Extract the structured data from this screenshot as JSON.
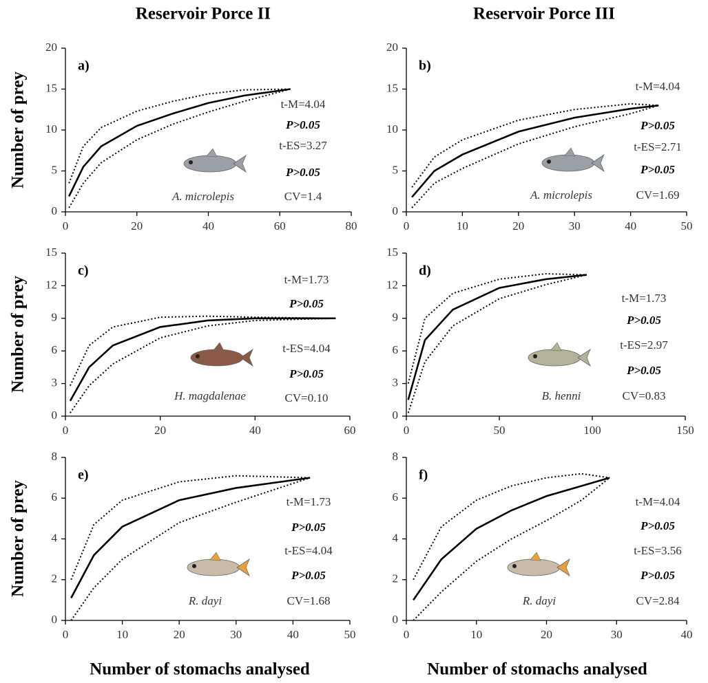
{
  "column_titles": [
    "Reservoir Porce II",
    "Reservoir Porce III"
  ],
  "y_label": "Number of prey",
  "x_label": "Number of stomachs analysed",
  "chart_data": [
    {
      "type": "line",
      "panel": "a)",
      "xlim": [
        0,
        80
      ],
      "xticks": [
        0,
        20,
        40,
        60,
        80
      ],
      "ylim": [
        0,
        20
      ],
      "yticks": [
        0,
        5,
        10,
        15,
        20
      ],
      "x": [
        1,
        5,
        10,
        20,
        30,
        40,
        50,
        63
      ],
      "series": [
        {
          "color": "#000000",
          "style": "solid",
          "values": [
            1.9,
            5.5,
            8,
            10.5,
            12,
            13.3,
            14.2,
            15
          ]
        },
        {
          "color": "#000000",
          "style": "dotted",
          "values": [
            3.5,
            8,
            10.3,
            12.3,
            13.5,
            14.4,
            14.9,
            15
          ]
        },
        {
          "color": "#000000",
          "style": "dotted",
          "values": [
            0.5,
            3.5,
            6,
            8.8,
            10.7,
            12.2,
            13.5,
            15
          ]
        }
      ],
      "annotations": [
        "t-M=4.04",
        "P>0.05",
        "t-ES=3.27",
        "P>0.05",
        "CV=1.4"
      ],
      "species": "A. microlepis"
    },
    {
      "type": "line",
      "panel": "b)",
      "xlim": [
        0,
        50
      ],
      "xticks": [
        0,
        10,
        20,
        30,
        40,
        50
      ],
      "ylim": [
        0,
        20
      ],
      "yticks": [
        0,
        5,
        10,
        15,
        20
      ],
      "x": [
        1,
        5,
        10,
        20,
        30,
        40,
        45
      ],
      "series": [
        {
          "color": "#000000",
          "style": "solid",
          "values": [
            1.8,
            5,
            7,
            9.8,
            11.5,
            12.6,
            13
          ]
        },
        {
          "color": "#000000",
          "style": "dotted",
          "values": [
            3,
            6.7,
            8.8,
            11.2,
            12.5,
            13.2,
            13
          ]
        },
        {
          "color": "#000000",
          "style": "dotted",
          "values": [
            0.5,
            3.5,
            5.3,
            8.3,
            10.4,
            12,
            13
          ]
        }
      ],
      "annotations": [
        "t-M=4.04",
        "P>0.05",
        "t-ES=2.71",
        "P>0.05",
        "CV=1.69"
      ],
      "species": "A. microlepis"
    },
    {
      "type": "line",
      "panel": "c)",
      "xlim": [
        0,
        60
      ],
      "xticks": [
        0,
        20,
        40,
        60
      ],
      "ylim": [
        0,
        15
      ],
      "yticks": [
        0,
        3,
        6,
        9,
        12,
        15
      ],
      "x": [
        1,
        5,
        10,
        20,
        30,
        40,
        57
      ],
      "series": [
        {
          "color": "#000000",
          "style": "solid",
          "values": [
            1.4,
            4.5,
            6.5,
            8.2,
            8.8,
            9,
            9
          ]
        },
        {
          "color": "#000000",
          "style": "dotted",
          "values": [
            2.8,
            6.5,
            8.2,
            9.1,
            9.2,
            9.1,
            9
          ]
        },
        {
          "color": "#000000",
          "style": "dotted",
          "values": [
            0.3,
            2.8,
            4.8,
            7.2,
            8.3,
            8.8,
            9
          ]
        }
      ],
      "annotations": [
        "t-M=1.73",
        "P>0.05",
        "t-ES=4.04",
        "P>0.05",
        "CV=0.10"
      ],
      "species": "H. magdalenae"
    },
    {
      "type": "line",
      "panel": "d)",
      "xlim": [
        0,
        150
      ],
      "xticks": [
        0,
        50,
        100,
        150
      ],
      "ylim": [
        0,
        15
      ],
      "yticks": [
        0,
        3,
        6,
        9,
        12,
        15
      ],
      "x": [
        1,
        10,
        25,
        50,
        75,
        97
      ],
      "series": [
        {
          "color": "#000000",
          "style": "solid",
          "values": [
            1.5,
            7,
            9.8,
            11.8,
            12.6,
            13
          ]
        },
        {
          "color": "#000000",
          "style": "dotted",
          "values": [
            3,
            9,
            11.3,
            12.6,
            13.1,
            13
          ]
        },
        {
          "color": "#000000",
          "style": "dotted",
          "values": [
            0.3,
            5,
            8.3,
            10.8,
            12.1,
            13
          ]
        }
      ],
      "annotations": [
        "t-M=1.73",
        "P>0.05",
        "t-ES=2.97",
        "P>0.05",
        "CV=0.83"
      ],
      "species": "B. henni"
    },
    {
      "type": "line",
      "panel": "e)",
      "xlim": [
        0,
        50
      ],
      "xticks": [
        0,
        10,
        20,
        30,
        40,
        50
      ],
      "ylim": [
        0,
        8
      ],
      "yticks": [
        0,
        2,
        4,
        6,
        8
      ],
      "x": [
        1,
        5,
        10,
        20,
        30,
        43
      ],
      "series": [
        {
          "color": "#000000",
          "style": "solid",
          "values": [
            1.1,
            3.2,
            4.6,
            5.9,
            6.5,
            7
          ]
        },
        {
          "color": "#000000",
          "style": "dotted",
          "values": [
            2,
            4.7,
            5.9,
            6.8,
            7.1,
            7
          ]
        },
        {
          "color": "#000000",
          "style": "dotted",
          "values": [
            0,
            1.6,
            3,
            4.8,
            5.8,
            7
          ]
        }
      ],
      "annotations": [
        "t-M=1.73",
        "P>0.05",
        "t-ES=4.04",
        "P>0.05",
        "CV=1.68"
      ],
      "species": "R. dayi"
    },
    {
      "type": "line",
      "panel": "f)",
      "xlim": [
        0,
        40
      ],
      "xticks": [
        0,
        10,
        20,
        30,
        40
      ],
      "ylim": [
        0,
        8
      ],
      "yticks": [
        0,
        2,
        4,
        6,
        8
      ],
      "x": [
        1,
        5,
        10,
        15,
        20,
        25,
        29
      ],
      "series": [
        {
          "color": "#000000",
          "style": "solid",
          "values": [
            1,
            3,
            4.5,
            5.4,
            6.1,
            6.6,
            7
          ]
        },
        {
          "color": "#000000",
          "style": "dotted",
          "values": [
            2,
            4.6,
            5.9,
            6.6,
            7,
            7.2,
            7
          ]
        },
        {
          "color": "#000000",
          "style": "dotted",
          "values": [
            0,
            1.4,
            2.9,
            4,
            4.9,
            5.9,
            7
          ]
        }
      ],
      "annotations": [
        "t-M=4.04",
        "P>0.05",
        "t-ES=3.56",
        "P>0.05",
        "CV=2.84"
      ],
      "species": "R. dayi"
    }
  ]
}
